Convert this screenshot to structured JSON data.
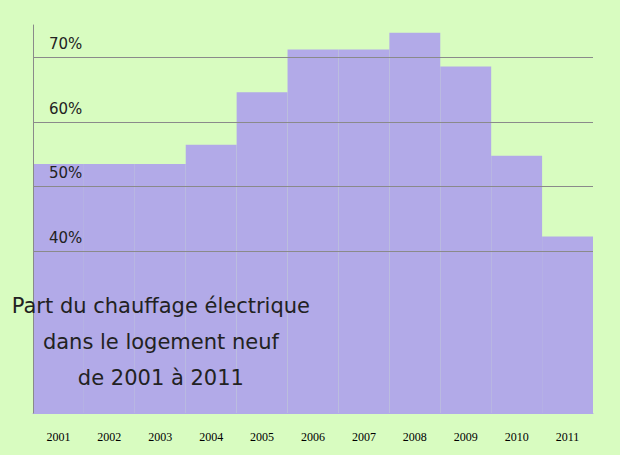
{
  "chart_data": {
    "type": "bar",
    "title": "Part du chauffage électrique\ndans le logement neuf\nde 2001 à 2011",
    "categories": [
      "2001",
      "2002",
      "2003",
      "2004",
      "2005",
      "2006",
      "2007",
      "2008",
      "2009",
      "2010",
      "2011"
    ],
    "values": [
      53.5,
      53.5,
      53.5,
      56.5,
      64.6,
      71.2,
      71.2,
      73.8,
      68.6,
      54.8,
      42.3
    ],
    "color": "#b2aae8",
    "ylim": [
      15,
      75
    ],
    "yticks": [
      {
        "value": 40,
        "label": "40%"
      },
      {
        "value": 50,
        "label": "50%"
      },
      {
        "value": 60,
        "label": "60%"
      },
      {
        "value": 70,
        "label": "70%"
      }
    ],
    "grid": true
  }
}
